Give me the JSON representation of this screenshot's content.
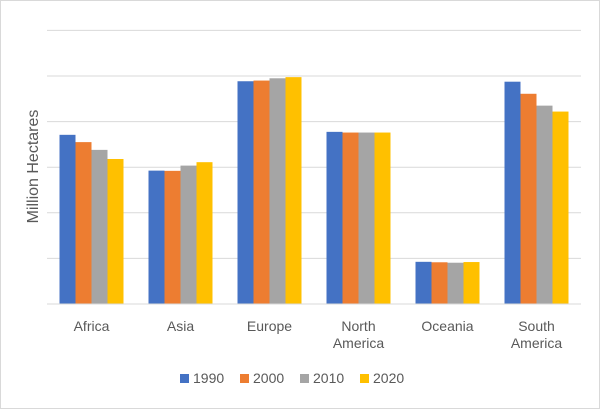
{
  "chart_data": {
    "type": "bar",
    "title": "",
    "xlabel": "",
    "ylabel": "Million Hectares",
    "categories": [
      [
        "Africa"
      ],
      [
        "Asia"
      ],
      [
        "Europe"
      ],
      [
        "North",
        "America"
      ],
      [
        "Oceania"
      ],
      [
        "South",
        "America"
      ]
    ],
    "series": [
      {
        "name": "1990",
        "color": "#4472C4",
        "values": [
          742,
          585,
          977,
          755,
          185,
          975
        ]
      },
      {
        "name": "2000",
        "color": "#ED7D31",
        "values": [
          710,
          584,
          980,
          752,
          183,
          922
        ]
      },
      {
        "name": "2010",
        "color": "#A5A5A5",
        "values": [
          676,
          607,
          990,
          752,
          181,
          870
        ]
      },
      {
        "name": "2020",
        "color": "#FFC000",
        "values": [
          636,
          622,
          995,
          752,
          184,
          844
        ]
      }
    ],
    "ylim": [
      0,
      1250
    ],
    "ytick_step": 200,
    "y_tick_labels_shown": false,
    "grid": true,
    "legend_position": "bottom"
  }
}
